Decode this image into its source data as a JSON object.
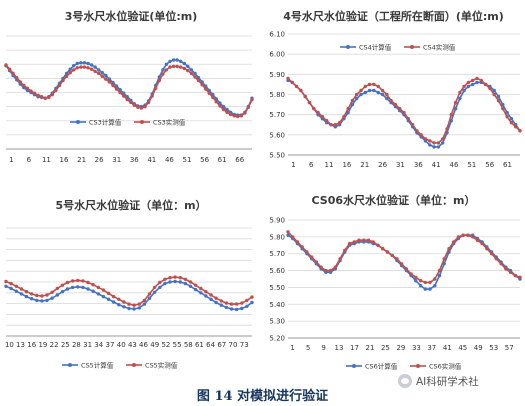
{
  "caption": "图 14 对模拟进行验证",
  "watermark": {
    "text": "AI科研学术社",
    "icon": "wechat-channel-icon"
  },
  "colors": {
    "calc": "#4472c4",
    "meas": "#c0504d",
    "grid": "#d9d9d9",
    "axis": "#808080"
  },
  "chart_data": [
    {
      "id": "cs3",
      "type": "line",
      "title": "3号水尺水位验证(单位:m)",
      "x_ticks": [
        "1",
        "6",
        "11",
        "16",
        "21",
        "26",
        "31",
        "36",
        "41",
        "46",
        "51",
        "56",
        "61",
        "66"
      ],
      "x_first_tick": 6,
      "show_y_labels": false,
      "y_min": 0,
      "y_max": 8,
      "y_step": 1,
      "legend_position": "bottom",
      "series": [
        {
          "name": "CS3计算值",
          "color": "#4472c4",
          "values": [
            5.9,
            5.55,
            5.2,
            4.9,
            4.6,
            4.35,
            4.15,
            4.0,
            3.85,
            3.7,
            3.65,
            3.6,
            3.7,
            3.95,
            4.3,
            4.65,
            5.0,
            5.35,
            5.65,
            5.9,
            6.05,
            6.1,
            6.1,
            6.05,
            5.95,
            5.8,
            5.6,
            5.4,
            5.2,
            4.95,
            4.7,
            4.45,
            4.2,
            3.95,
            3.7,
            3.45,
            3.2,
            3.05,
            3.0,
            3.1,
            3.4,
            3.9,
            4.5,
            5.1,
            5.6,
            6.0,
            6.2,
            6.3,
            6.3,
            6.2,
            6.05,
            5.85,
            5.6,
            5.35,
            5.05,
            4.75,
            4.45,
            4.15,
            3.85,
            3.55,
            3.25,
            3.0,
            2.8,
            2.6,
            2.45,
            2.4,
            2.4,
            2.6,
            3.0,
            3.6
          ]
        },
        {
          "name": "CS3实测值",
          "color": "#c0504d",
          "values": [
            5.95,
            5.65,
            5.35,
            5.05,
            4.75,
            4.5,
            4.3,
            4.1,
            3.95,
            3.8,
            3.7,
            3.6,
            3.65,
            3.85,
            4.15,
            4.5,
            4.85,
            5.15,
            5.4,
            5.6,
            5.75,
            5.8,
            5.8,
            5.75,
            5.65,
            5.5,
            5.35,
            5.15,
            4.95,
            4.75,
            4.5,
            4.25,
            4.0,
            3.75,
            3.5,
            3.3,
            3.1,
            2.95,
            2.9,
            3.0,
            3.3,
            3.75,
            4.3,
            4.85,
            5.3,
            5.6,
            5.8,
            5.85,
            5.85,
            5.8,
            5.7,
            5.55,
            5.35,
            5.1,
            4.85,
            4.55,
            4.25,
            3.95,
            3.65,
            3.35,
            3.05,
            2.8,
            2.6,
            2.45,
            2.35,
            2.3,
            2.35,
            2.55,
            2.95,
            3.5
          ]
        }
      ]
    },
    {
      "id": "cs4",
      "type": "line",
      "title": "4号水尺水位验证（工程所在断面）(单位:m)",
      "y_ticks": [
        "5.50",
        "5.60",
        "5.70",
        "5.80",
        "5.90",
        "6.00",
        "6.10"
      ],
      "y_min": 5.5,
      "y_max": 6.1,
      "y_step": 0.1,
      "x_ticks": [
        "1",
        "6",
        "11",
        "16",
        "21",
        "26",
        "31",
        "36",
        "41",
        "46",
        "51",
        "56",
        "61"
      ],
      "legend_position": "top",
      "series": [
        {
          "name": "CS4计算值",
          "color": "#4472c4",
          "values": [
            5.87,
            5.86,
            5.84,
            5.82,
            5.79,
            5.76,
            5.73,
            5.7,
            5.68,
            5.66,
            5.65,
            5.64,
            5.65,
            5.68,
            5.71,
            5.75,
            5.78,
            5.8,
            5.81,
            5.82,
            5.82,
            5.81,
            5.8,
            5.78,
            5.76,
            5.74,
            5.72,
            5.7,
            5.67,
            5.64,
            5.61,
            5.59,
            5.57,
            5.55,
            5.54,
            5.54,
            5.56,
            5.61,
            5.67,
            5.73,
            5.78,
            5.82,
            5.84,
            5.85,
            5.86,
            5.86,
            5.85,
            5.84,
            5.82,
            5.79,
            5.75,
            5.71,
            5.68,
            5.65,
            5.62
          ]
        },
        {
          "name": "CS4实测值",
          "color": "#c0504d",
          "values": [
            5.88,
            5.86,
            5.84,
            5.82,
            5.79,
            5.76,
            5.73,
            5.71,
            5.69,
            5.67,
            5.65,
            5.65,
            5.66,
            5.69,
            5.73,
            5.77,
            5.8,
            5.82,
            5.84,
            5.85,
            5.85,
            5.84,
            5.82,
            5.8,
            5.77,
            5.75,
            5.73,
            5.71,
            5.68,
            5.65,
            5.62,
            5.6,
            5.58,
            5.57,
            5.56,
            5.56,
            5.58,
            5.63,
            5.7,
            5.76,
            5.81,
            5.84,
            5.86,
            5.87,
            5.88,
            5.87,
            5.85,
            5.83,
            5.8,
            5.77,
            5.73,
            5.69,
            5.66,
            5.64,
            5.62
          ]
        }
      ]
    },
    {
      "id": "cs5",
      "type": "line",
      "title": "5号水尺水位验证（单位：m）",
      "x_ticks": [
        "10",
        "13",
        "16",
        "19",
        "22",
        "25",
        "28",
        "31",
        "34",
        "37",
        "40",
        "43",
        "46",
        "49",
        "52",
        "55",
        "58",
        "61",
        "64",
        "67",
        "70",
        "73"
      ],
      "x_first_tick": 10,
      "show_y_labels": false,
      "y_min": 0,
      "y_max": 10,
      "y_step": 1,
      "legend_position": "bottom",
      "series": [
        {
          "name": "CS5计算值",
          "color": "#4472c4",
          "values": [
            4.6,
            4.4,
            4.15,
            3.9,
            3.65,
            3.45,
            3.3,
            3.25,
            3.3,
            3.5,
            3.8,
            4.1,
            4.35,
            4.5,
            4.55,
            4.5,
            4.35,
            4.15,
            3.9,
            3.65,
            3.4,
            3.15,
            2.9,
            2.7,
            2.55,
            2.5,
            2.6,
            2.95,
            3.5,
            4.05,
            4.5,
            4.85,
            5.0,
            5.05,
            5.0,
            4.85,
            4.6,
            4.3,
            4.0,
            3.7,
            3.4,
            3.1,
            2.85,
            2.65,
            2.5,
            2.45,
            2.55,
            2.75,
            3.1
          ]
        },
        {
          "name": "CS5实测值",
          "color": "#c0504d",
          "values": [
            5.05,
            4.85,
            4.6,
            4.35,
            4.1,
            3.9,
            3.75,
            3.7,
            3.8,
            4.05,
            4.4,
            4.7,
            4.95,
            5.1,
            5.15,
            5.1,
            4.95,
            4.75,
            4.5,
            4.25,
            3.95,
            3.65,
            3.4,
            3.15,
            2.95,
            2.85,
            2.95,
            3.3,
            3.9,
            4.5,
            4.95,
            5.25,
            5.4,
            5.45,
            5.4,
            5.25,
            5.0,
            4.7,
            4.4,
            4.1,
            3.8,
            3.5,
            3.25,
            3.05,
            2.95,
            2.95,
            3.05,
            3.3,
            3.6
          ]
        }
      ]
    },
    {
      "id": "cs06",
      "type": "line",
      "title": "CS06水尺水位验证（单位：m）",
      "y_ticks": [
        "5.20",
        "5.30",
        "5.40",
        "5.50",
        "5.60",
        "5.70",
        "5.80",
        "5.90"
      ],
      "y_min": 5.2,
      "y_max": 5.9,
      "y_step": 0.1,
      "x_ticks": [
        "1",
        "5",
        "9",
        "13",
        "17",
        "21",
        "25",
        "29",
        "33",
        "37",
        "41",
        "45",
        "49",
        "53",
        "57"
      ],
      "legend_position": "bottom",
      "series": [
        {
          "name": "CS6计算值",
          "color": "#4472c4",
          "values": [
            5.81,
            5.79,
            5.76,
            5.73,
            5.7,
            5.67,
            5.64,
            5.61,
            5.59,
            5.59,
            5.61,
            5.66,
            5.71,
            5.75,
            5.76,
            5.77,
            5.77,
            5.77,
            5.76,
            5.75,
            5.73,
            5.71,
            5.69,
            5.66,
            5.63,
            5.6,
            5.57,
            5.54,
            5.51,
            5.49,
            5.49,
            5.51,
            5.57,
            5.64,
            5.71,
            5.76,
            5.79,
            5.81,
            5.81,
            5.81,
            5.79,
            5.77,
            5.74,
            5.71,
            5.68,
            5.65,
            5.62,
            5.6,
            5.57,
            5.55
          ]
        },
        {
          "name": "CS6实测值",
          "color": "#c0504d",
          "values": [
            5.83,
            5.8,
            5.77,
            5.74,
            5.71,
            5.68,
            5.65,
            5.62,
            5.6,
            5.6,
            5.62,
            5.67,
            5.72,
            5.76,
            5.77,
            5.78,
            5.78,
            5.78,
            5.77,
            5.75,
            5.73,
            5.71,
            5.69,
            5.67,
            5.64,
            5.61,
            5.58,
            5.56,
            5.54,
            5.53,
            5.53,
            5.55,
            5.6,
            5.67,
            5.73,
            5.77,
            5.8,
            5.81,
            5.81,
            5.8,
            5.78,
            5.76,
            5.73,
            5.7,
            5.67,
            5.64,
            5.61,
            5.59,
            5.57,
            5.56
          ]
        }
      ]
    }
  ]
}
